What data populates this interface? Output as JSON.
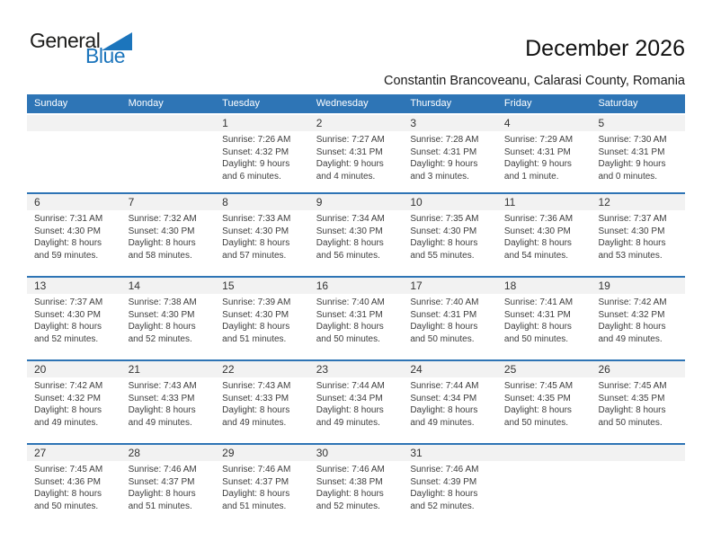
{
  "logo": {
    "part1": "General",
    "part2": "Blue"
  },
  "header": {
    "title": "December 2026",
    "subtitle": "Constantin Brancoveanu, Calarasi County, Romania"
  },
  "colors": {
    "header_bg": "#2E75B6",
    "week_separator": "#2E74B5",
    "day_strip_bg": "#F2F2F2",
    "logo_blue": "#1C75BC",
    "header_text": "#FFFFFF"
  },
  "calendar": {
    "weekdays": [
      "Sunday",
      "Monday",
      "Tuesday",
      "Wednesday",
      "Thursday",
      "Friday",
      "Saturday"
    ],
    "labels": {
      "sunrise": "Sunrise:",
      "sunset": "Sunset:",
      "daylight": "Daylight:"
    },
    "weeks": [
      [
        null,
        null,
        {
          "day": "1",
          "sunrise": "7:26 AM",
          "sunset": "4:32 PM",
          "daylight": "9 hours and 6 minutes."
        },
        {
          "day": "2",
          "sunrise": "7:27 AM",
          "sunset": "4:31 PM",
          "daylight": "9 hours and 4 minutes."
        },
        {
          "day": "3",
          "sunrise": "7:28 AM",
          "sunset": "4:31 PM",
          "daylight": "9 hours and 3 minutes."
        },
        {
          "day": "4",
          "sunrise": "7:29 AM",
          "sunset": "4:31 PM",
          "daylight": "9 hours and 1 minute."
        },
        {
          "day": "5",
          "sunrise": "7:30 AM",
          "sunset": "4:31 PM",
          "daylight": "9 hours and 0 minutes."
        }
      ],
      [
        {
          "day": "6",
          "sunrise": "7:31 AM",
          "sunset": "4:30 PM",
          "daylight": "8 hours and 59 minutes."
        },
        {
          "day": "7",
          "sunrise": "7:32 AM",
          "sunset": "4:30 PM",
          "daylight": "8 hours and 58 minutes."
        },
        {
          "day": "8",
          "sunrise": "7:33 AM",
          "sunset": "4:30 PM",
          "daylight": "8 hours and 57 minutes."
        },
        {
          "day": "9",
          "sunrise": "7:34 AM",
          "sunset": "4:30 PM",
          "daylight": "8 hours and 56 minutes."
        },
        {
          "day": "10",
          "sunrise": "7:35 AM",
          "sunset": "4:30 PM",
          "daylight": "8 hours and 55 minutes."
        },
        {
          "day": "11",
          "sunrise": "7:36 AM",
          "sunset": "4:30 PM",
          "daylight": "8 hours and 54 minutes."
        },
        {
          "day": "12",
          "sunrise": "7:37 AM",
          "sunset": "4:30 PM",
          "daylight": "8 hours and 53 minutes."
        }
      ],
      [
        {
          "day": "13",
          "sunrise": "7:37 AM",
          "sunset": "4:30 PM",
          "daylight": "8 hours and 52 minutes."
        },
        {
          "day": "14",
          "sunrise": "7:38 AM",
          "sunset": "4:30 PM",
          "daylight": "8 hours and 52 minutes."
        },
        {
          "day": "15",
          "sunrise": "7:39 AM",
          "sunset": "4:30 PM",
          "daylight": "8 hours and 51 minutes."
        },
        {
          "day": "16",
          "sunrise": "7:40 AM",
          "sunset": "4:31 PM",
          "daylight": "8 hours and 50 minutes."
        },
        {
          "day": "17",
          "sunrise": "7:40 AM",
          "sunset": "4:31 PM",
          "daylight": "8 hours and 50 minutes."
        },
        {
          "day": "18",
          "sunrise": "7:41 AM",
          "sunset": "4:31 PM",
          "daylight": "8 hours and 50 minutes."
        },
        {
          "day": "19",
          "sunrise": "7:42 AM",
          "sunset": "4:32 PM",
          "daylight": "8 hours and 49 minutes."
        }
      ],
      [
        {
          "day": "20",
          "sunrise": "7:42 AM",
          "sunset": "4:32 PM",
          "daylight": "8 hours and 49 minutes."
        },
        {
          "day": "21",
          "sunrise": "7:43 AM",
          "sunset": "4:33 PM",
          "daylight": "8 hours and 49 minutes."
        },
        {
          "day": "22",
          "sunrise": "7:43 AM",
          "sunset": "4:33 PM",
          "daylight": "8 hours and 49 minutes."
        },
        {
          "day": "23",
          "sunrise": "7:44 AM",
          "sunset": "4:34 PM",
          "daylight": "8 hours and 49 minutes."
        },
        {
          "day": "24",
          "sunrise": "7:44 AM",
          "sunset": "4:34 PM",
          "daylight": "8 hours and 49 minutes."
        },
        {
          "day": "25",
          "sunrise": "7:45 AM",
          "sunset": "4:35 PM",
          "daylight": "8 hours and 50 minutes."
        },
        {
          "day": "26",
          "sunrise": "7:45 AM",
          "sunset": "4:35 PM",
          "daylight": "8 hours and 50 minutes."
        }
      ],
      [
        {
          "day": "27",
          "sunrise": "7:45 AM",
          "sunset": "4:36 PM",
          "daylight": "8 hours and 50 minutes."
        },
        {
          "day": "28",
          "sunrise": "7:46 AM",
          "sunset": "4:37 PM",
          "daylight": "8 hours and 51 minutes."
        },
        {
          "day": "29",
          "sunrise": "7:46 AM",
          "sunset": "4:37 PM",
          "daylight": "8 hours and 51 minutes."
        },
        {
          "day": "30",
          "sunrise": "7:46 AM",
          "sunset": "4:38 PM",
          "daylight": "8 hours and 52 minutes."
        },
        {
          "day": "31",
          "sunrise": "7:46 AM",
          "sunset": "4:39 PM",
          "daylight": "8 hours and 52 minutes."
        },
        null,
        null
      ]
    ]
  }
}
